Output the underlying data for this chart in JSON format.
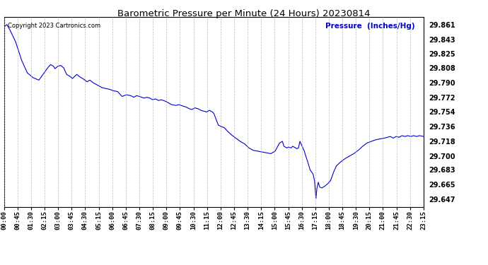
{
  "title": "Barometric Pressure per Minute (24 Hours) 20230814",
  "copyright_text": "Copyright 2023 Cartronics.com",
  "pressure_label": "Pressure  (Inches/Hg)",
  "bg_color": "#ffffff",
  "line_color": "#0000cc",
  "grid_color": "#aaaaaa",
  "title_color": "#000000",
  "label_color": "#0000cc",
  "copyright_color": "#000000",
  "yticks": [
    29.647,
    29.665,
    29.683,
    29.7,
    29.718,
    29.736,
    29.754,
    29.772,
    29.79,
    29.808,
    29.825,
    29.843,
    29.861
  ],
  "ylim": [
    29.638,
    29.87
  ],
  "xtick_labels": [
    "00:00",
    "00:45",
    "01:30",
    "02:15",
    "03:00",
    "03:45",
    "04:30",
    "05:15",
    "06:00",
    "06:45",
    "07:30",
    "08:15",
    "09:00",
    "09:45",
    "10:30",
    "11:15",
    "12:00",
    "12:45",
    "13:30",
    "14:15",
    "15:00",
    "15:45",
    "16:30",
    "17:15",
    "18:00",
    "18:45",
    "19:30",
    "20:15",
    "21:00",
    "21:45",
    "22:30",
    "23:15"
  ],
  "num_points": 1440,
  "key_points": [
    [
      0,
      29.858
    ],
    [
      10,
      29.861
    ],
    [
      20,
      29.855
    ],
    [
      40,
      29.84
    ],
    [
      60,
      29.818
    ],
    [
      80,
      29.802
    ],
    [
      100,
      29.796
    ],
    [
      120,
      29.793
    ],
    [
      150,
      29.808
    ],
    [
      160,
      29.812
    ],
    [
      170,
      29.81
    ],
    [
      175,
      29.807
    ],
    [
      185,
      29.81
    ],
    [
      195,
      29.811
    ],
    [
      205,
      29.808
    ],
    [
      215,
      29.8
    ],
    [
      225,
      29.798
    ],
    [
      235,
      29.795
    ],
    [
      250,
      29.8
    ],
    [
      260,
      29.797
    ],
    [
      270,
      29.795
    ],
    [
      285,
      29.791
    ],
    [
      295,
      29.793
    ],
    [
      305,
      29.79
    ],
    [
      315,
      29.788
    ],
    [
      325,
      29.786
    ],
    [
      335,
      29.784
    ],
    [
      345,
      29.783
    ],
    [
      360,
      29.782
    ],
    [
      375,
      29.78
    ],
    [
      390,
      29.779
    ],
    [
      405,
      29.773
    ],
    [
      420,
      29.775
    ],
    [
      435,
      29.774
    ],
    [
      445,
      29.772
    ],
    [
      455,
      29.774
    ],
    [
      465,
      29.773
    ],
    [
      480,
      29.771
    ],
    [
      490,
      29.772
    ],
    [
      500,
      29.771
    ],
    [
      510,
      29.769
    ],
    [
      520,
      29.77
    ],
    [
      530,
      29.768
    ],
    [
      540,
      29.769
    ],
    [
      555,
      29.767
    ],
    [
      565,
      29.765
    ],
    [
      575,
      29.763
    ],
    [
      590,
      29.762
    ],
    [
      600,
      29.763
    ],
    [
      615,
      29.761
    ],
    [
      625,
      29.76
    ],
    [
      635,
      29.758
    ],
    [
      645,
      29.757
    ],
    [
      655,
      29.759
    ],
    [
      665,
      29.758
    ],
    [
      675,
      29.756
    ],
    [
      685,
      29.755
    ],
    [
      695,
      29.754
    ],
    [
      705,
      29.756
    ],
    [
      715,
      29.754
    ],
    [
      720,
      29.752
    ],
    [
      735,
      29.738
    ],
    [
      745,
      29.736
    ],
    [
      755,
      29.735
    ],
    [
      765,
      29.731
    ],
    [
      780,
      29.726
    ],
    [
      795,
      29.722
    ],
    [
      810,
      29.718
    ],
    [
      825,
      29.715
    ],
    [
      840,
      29.71
    ],
    [
      855,
      29.707
    ],
    [
      870,
      29.706
    ],
    [
      885,
      29.705
    ],
    [
      900,
      29.704
    ],
    [
      915,
      29.703
    ],
    [
      930,
      29.706
    ],
    [
      945,
      29.716
    ],
    [
      955,
      29.718
    ],
    [
      960,
      29.712
    ],
    [
      970,
      29.71
    ],
    [
      975,
      29.711
    ],
    [
      985,
      29.71
    ],
    [
      990,
      29.712
    ],
    [
      1000,
      29.71
    ],
    [
      1005,
      29.709
    ],
    [
      1010,
      29.71
    ],
    [
      1015,
      29.718
    ],
    [
      1020,
      29.714
    ],
    [
      1025,
      29.71
    ],
    [
      1030,
      29.706
    ],
    [
      1035,
      29.7
    ],
    [
      1040,
      29.695
    ],
    [
      1050,
      29.683
    ],
    [
      1060,
      29.678
    ],
    [
      1065,
      29.67
    ],
    [
      1070,
      29.648
    ],
    [
      1073,
      29.66
    ],
    [
      1078,
      29.668
    ],
    [
      1083,
      29.662
    ],
    [
      1090,
      29.661
    ],
    [
      1100,
      29.663
    ],
    [
      1110,
      29.666
    ],
    [
      1120,
      29.67
    ],
    [
      1130,
      29.68
    ],
    [
      1140,
      29.688
    ],
    [
      1155,
      29.693
    ],
    [
      1170,
      29.697
    ],
    [
      1185,
      29.7
    ],
    [
      1200,
      29.703
    ],
    [
      1215,
      29.707
    ],
    [
      1230,
      29.712
    ],
    [
      1245,
      29.716
    ],
    [
      1260,
      29.718
    ],
    [
      1275,
      29.72
    ],
    [
      1290,
      29.721
    ],
    [
      1305,
      29.722
    ],
    [
      1315,
      29.723
    ],
    [
      1325,
      29.724
    ],
    [
      1335,
      29.722
    ],
    [
      1345,
      29.724
    ],
    [
      1355,
      29.723
    ],
    [
      1365,
      29.725
    ],
    [
      1375,
      29.724
    ],
    [
      1385,
      29.725
    ],
    [
      1395,
      29.724
    ],
    [
      1405,
      29.725
    ],
    [
      1415,
      29.724
    ],
    [
      1425,
      29.725
    ],
    [
      1439,
      29.724
    ]
  ]
}
